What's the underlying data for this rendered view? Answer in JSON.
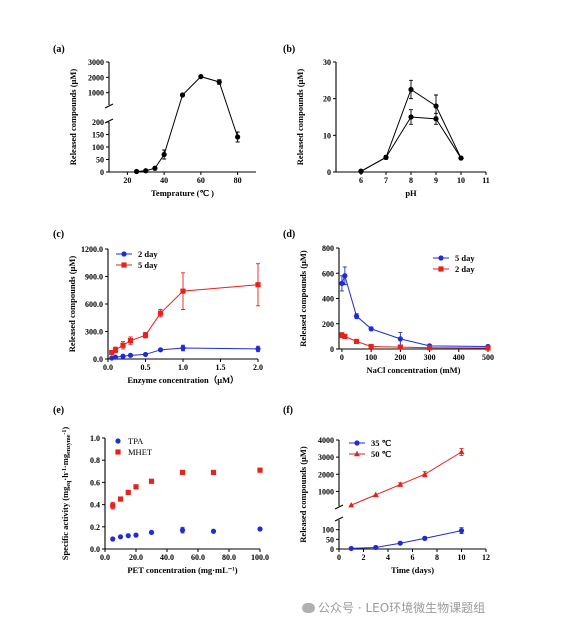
{
  "colors": {
    "blue": "#1f2bd6",
    "red": "#e3231c",
    "black": "#000000",
    "bg": "#ffffff"
  },
  "watermark": {
    "icon": "wechat-icon",
    "text": "公众号 · LEO环境微生物课题组"
  },
  "chart_data": [
    {
      "id": "a",
      "panel": "(a)",
      "type": "line",
      "xlabel": "Temprature (℃ )",
      "ylabel": "Released compounds (μM)",
      "xlim": [
        10,
        90
      ],
      "xticks": [
        20,
        40,
        60,
        80
      ],
      "yaxis_break": {
        "lower": [
          0,
          200
        ],
        "upper": [
          200,
          3000
        ]
      },
      "yticks_lower": [
        0,
        50,
        100,
        150,
        200
      ],
      "yticks_upper": [
        1000,
        2000,
        3000
      ],
      "series": [
        {
          "color": "#000000",
          "marker": "circle",
          "points": [
            {
              "x": 25,
              "y": 2,
              "err": 0
            },
            {
              "x": 30,
              "y": 5,
              "err": 2
            },
            {
              "x": 35,
              "y": 15,
              "err": 3
            },
            {
              "x": 40,
              "y": 70,
              "err": 18
            },
            {
              "x": 50,
              "y": 850,
              "err": 30
            },
            {
              "x": 60,
              "y": 2050,
              "err": 40
            },
            {
              "x": 70,
              "y": 1700,
              "err": 150
            },
            {
              "x": 80,
              "y": 140,
              "err": 20
            }
          ]
        }
      ]
    },
    {
      "id": "b",
      "panel": "(b)",
      "type": "line",
      "xlabel": "pH",
      "ylabel": "Released compounds (μM)",
      "xlim": [
        5,
        11
      ],
      "xticks": [
        6,
        7,
        8,
        9,
        10,
        11
      ],
      "ylim": [
        0,
        30
      ],
      "yticks": [
        0,
        10,
        20,
        30
      ],
      "series": [
        {
          "color": "#000000",
          "marker": "circle",
          "points": [
            {
              "x": 6,
              "y": 0.2,
              "err": 0
            },
            {
              "x": 7,
              "y": 4,
              "err": 0.5
            },
            {
              "x": 8,
              "y": 22.5,
              "err": 2.5
            },
            {
              "x": 9,
              "y": 18,
              "err": 3
            },
            {
              "x": 10,
              "y": 3.8,
              "err": 0.3
            }
          ]
        },
        {
          "color": "#000000",
          "marker": "circle",
          "points": [
            {
              "x": 6,
              "y": 0.2,
              "err": 0
            },
            {
              "x": 7,
              "y": 4,
              "err": 0.5
            },
            {
              "x": 8,
              "y": 15,
              "err": 2
            },
            {
              "x": 9,
              "y": 14.5,
              "err": 1.5
            },
            {
              "x": 10,
              "y": 3.8,
              "err": 0.3
            }
          ]
        }
      ]
    },
    {
      "id": "c",
      "panel": "(c)",
      "type": "line",
      "xlabel": "Enzyme concentration（μM）",
      "ylabel": "Released compounds (μM)",
      "xlim": [
        0,
        2
      ],
      "xticks": [
        0.0,
        0.5,
        1.0,
        1.5,
        2.0
      ],
      "ylim": [
        0,
        1200
      ],
      "yticks": [
        0,
        300,
        600,
        900,
        1200
      ],
      "legend": "top-left",
      "series": [
        {
          "name": "2 day",
          "color": "#1f2bd6",
          "marker": "circle",
          "points": [
            {
              "x": 0.05,
              "y": 10,
              "err": 0
            },
            {
              "x": 0.1,
              "y": 20,
              "err": 0
            },
            {
              "x": 0.2,
              "y": 30,
              "err": 0
            },
            {
              "x": 0.3,
              "y": 40,
              "err": 0
            },
            {
              "x": 0.5,
              "y": 50,
              "err": 0
            },
            {
              "x": 0.7,
              "y": 100,
              "err": 0
            },
            {
              "x": 1.0,
              "y": 120,
              "err": 30
            },
            {
              "x": 2.0,
              "y": 110,
              "err": 30
            }
          ]
        },
        {
          "name": "5 day",
          "color": "#e3231c",
          "marker": "square",
          "points": [
            {
              "x": 0.05,
              "y": 70,
              "err": 20
            },
            {
              "x": 0.1,
              "y": 100,
              "err": 30
            },
            {
              "x": 0.2,
              "y": 150,
              "err": 40
            },
            {
              "x": 0.3,
              "y": 200,
              "err": 40
            },
            {
              "x": 0.5,
              "y": 260,
              "err": 30
            },
            {
              "x": 0.7,
              "y": 500,
              "err": 40
            },
            {
              "x": 1.0,
              "y": 740,
              "err": 200
            },
            {
              "x": 2.0,
              "y": 810,
              "err": 230
            }
          ]
        }
      ]
    },
    {
      "id": "d",
      "panel": "(d)",
      "type": "line",
      "xlabel": "NaCl concentration (mM)",
      "ylabel": "Released compounds (μM)",
      "xlim": [
        -10,
        500
      ],
      "xticks": [
        0,
        100,
        200,
        300,
        400,
        500
      ],
      "ylim": [
        0,
        800
      ],
      "yticks": [
        0,
        200,
        400,
        600,
        800
      ],
      "legend": "top-right",
      "series": [
        {
          "name": "5 day",
          "color": "#1f2bd6",
          "marker": "circle",
          "points": [
            {
              "x": 0,
              "y": 520,
              "err": 60
            },
            {
              "x": 10,
              "y": 580,
              "err": 70
            },
            {
              "x": 50,
              "y": 260,
              "err": 20
            },
            {
              "x": 100,
              "y": 160,
              "err": 15
            },
            {
              "x": 200,
              "y": 80,
              "err": 50
            },
            {
              "x": 300,
              "y": 25,
              "err": 10
            },
            {
              "x": 500,
              "y": 20,
              "err": 10
            }
          ]
        },
        {
          "name": "2 day",
          "color": "#e3231c",
          "marker": "square",
          "points": [
            {
              "x": 0,
              "y": 110,
              "err": 20
            },
            {
              "x": 10,
              "y": 100,
              "err": 15
            },
            {
              "x": 50,
              "y": 60,
              "err": 10
            },
            {
              "x": 100,
              "y": 20,
              "err": 5
            },
            {
              "x": 200,
              "y": 15,
              "err": 5
            },
            {
              "x": 300,
              "y": 10,
              "err": 3
            },
            {
              "x": 500,
              "y": 8,
              "err": 3
            }
          ]
        }
      ]
    },
    {
      "id": "e",
      "panel": "(e)",
      "type": "scatter",
      "xlabel": "PET concentration (mg·mL⁻¹)",
      "ylabel_parts": [
        "Specific activity (mg",
        "eq",
        "·h",
        "-1",
        "·mg",
        "enzyme",
        "-1",
        ")"
      ],
      "xlim": [
        0,
        100
      ],
      "xticks": [
        0,
        20,
        40,
        60,
        80,
        100
      ],
      "ylim": [
        0,
        1.0
      ],
      "yticks": [
        0.0,
        0.2,
        0.4,
        0.6,
        0.8,
        1.0
      ],
      "legend": "top-left",
      "series": [
        {
          "name": "TPA",
          "color": "#1f2bd6",
          "marker": "circle",
          "points": [
            {
              "x": 5,
              "y": 0.09,
              "err": 0
            },
            {
              "x": 10,
              "y": 0.11,
              "err": 0
            },
            {
              "x": 15,
              "y": 0.12,
              "err": 0
            },
            {
              "x": 20,
              "y": 0.125,
              "err": 0
            },
            {
              "x": 30,
              "y": 0.15,
              "err": 0
            },
            {
              "x": 50,
              "y": 0.17,
              "err": 0.025
            },
            {
              "x": 70,
              "y": 0.16,
              "err": 0
            },
            {
              "x": 100,
              "y": 0.18,
              "err": 0
            }
          ]
        },
        {
          "name": "MHET",
          "color": "#e3231c",
          "marker": "square",
          "points": [
            {
              "x": 5,
              "y": 0.39,
              "err": 0.03
            },
            {
              "x": 10,
              "y": 0.45,
              "err": 0
            },
            {
              "x": 15,
              "y": 0.51,
              "err": 0
            },
            {
              "x": 20,
              "y": 0.56,
              "err": 0
            },
            {
              "x": 30,
              "y": 0.61,
              "err": 0
            },
            {
              "x": 50,
              "y": 0.69,
              "err": 0
            },
            {
              "x": 70,
              "y": 0.69,
              "err": 0
            },
            {
              "x": 100,
              "y": 0.71,
              "err": 0
            }
          ]
        }
      ]
    },
    {
      "id": "f",
      "panel": "(f)",
      "type": "line",
      "xlabel": "Time (days)",
      "ylabel": "Released compounds (μM)",
      "xlim": [
        0,
        12
      ],
      "xticks": [
        0,
        2,
        4,
        6,
        8,
        10,
        12
      ],
      "yaxis_break": {
        "lower": [
          0,
          150
        ],
        "upper": [
          150,
          4000
        ]
      },
      "yticks_lower": [
        0,
        50,
        100
      ],
      "yticks_upper": [
        1000,
        2000,
        3000,
        4000
      ],
      "legend": "top-left",
      "series": [
        {
          "name": "35 ℃",
          "color": "#1f2bd6",
          "marker": "circle",
          "points": [
            {
              "x": 1,
              "y": 3,
              "err": 0
            },
            {
              "x": 3,
              "y": 8,
              "err": 0
            },
            {
              "x": 5,
              "y": 30,
              "err": 0
            },
            {
              "x": 7,
              "y": 55,
              "err": 8
            },
            {
              "x": 10,
              "y": 95,
              "err": 15
            }
          ]
        },
        {
          "name": "50 ℃",
          "color": "#e3231c",
          "marker": "triangle",
          "points": [
            {
              "x": 1,
              "y": 200,
              "err": 0
            },
            {
              "x": 3,
              "y": 800,
              "err": 0
            },
            {
              "x": 5,
              "y": 1400,
              "err": 100
            },
            {
              "x": 7,
              "y": 2000,
              "err": 150
            },
            {
              "x": 10,
              "y": 3300,
              "err": 200
            }
          ]
        }
      ]
    }
  ]
}
